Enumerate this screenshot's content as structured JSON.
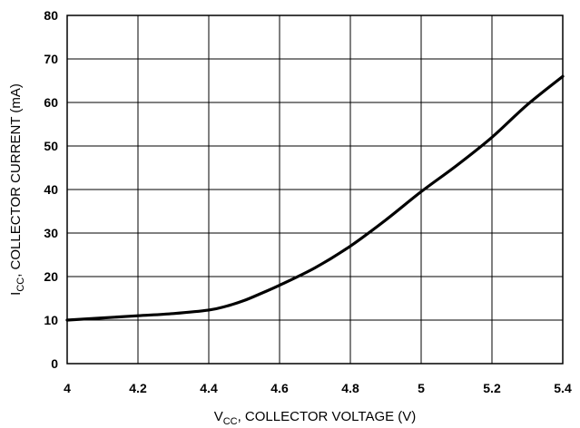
{
  "chart_data": {
    "type": "line",
    "title": "",
    "xlabel": {
      "main": "V",
      "sub": "CC",
      "rest": ", COLLECTOR VOLTAGE (V)"
    },
    "ylabel": {
      "main": "I",
      "sub": "CC",
      "rest": ", COLLECTOR CURRENT (mA)"
    },
    "xlim": [
      4,
      5.4
    ],
    "ylim": [
      0,
      80
    ],
    "x_ticks": [
      "4",
      "4.2",
      "4.4",
      "4.6",
      "4.8",
      "5",
      "5.2",
      "5.4"
    ],
    "y_ticks": [
      "0",
      "10",
      "20",
      "30",
      "40",
      "50",
      "60",
      "70",
      "80"
    ],
    "grid": true,
    "legend": "none",
    "series": [
      {
        "color": "#000000",
        "x": [
          4.0,
          4.1,
          4.2,
          4.3,
          4.4,
          4.45,
          4.5,
          4.55,
          4.6,
          4.7,
          4.8,
          4.9,
          5.0,
          5.1,
          5.2,
          5.3,
          5.4
        ],
        "y": [
          10.0,
          10.5,
          11.0,
          11.5,
          12.3,
          13.2,
          14.5,
          16.2,
          18.0,
          22.0,
          27.0,
          33.0,
          39.5,
          45.5,
          52.0,
          59.5,
          66.0
        ]
      }
    ]
  }
}
